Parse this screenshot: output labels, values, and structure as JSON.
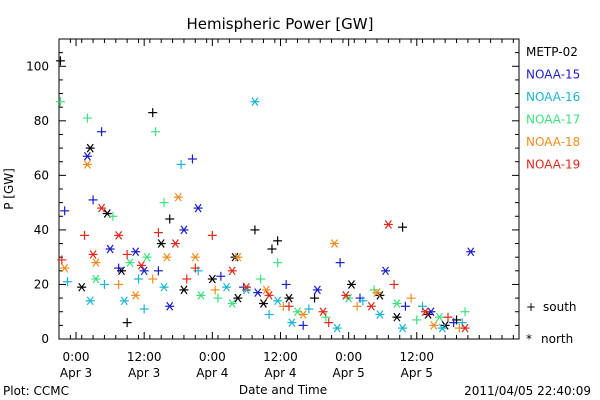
{
  "chart_data": {
    "type": "scatter",
    "title": "Hemispheric Power [GW]",
    "xlabel": "Date and Time",
    "ylabel": "P [GW]",
    "xlim": [
      "2011-04-02T21:00",
      "2011-04-06T06:00"
    ],
    "ylim": [
      0,
      110
    ],
    "y_ticks": [
      0,
      20,
      40,
      60,
      80,
      100
    ],
    "x_ticks": [
      {
        "at": "2011-04-03T00:00",
        "line1": "0:00",
        "line2": "Apr 3"
      },
      {
        "at": "2011-04-03T12:00",
        "line1": "12:00",
        "line2": "Apr 3"
      },
      {
        "at": "2011-04-04T00:00",
        "line1": "0:00",
        "line2": "Apr 4"
      },
      {
        "at": "2011-04-04T12:00",
        "line1": "12:00",
        "line2": "Apr 4"
      },
      {
        "at": "2011-04-05T00:00",
        "line1": "0:00",
        "line2": "Apr 5"
      },
      {
        "at": "2011-04-05T12:00",
        "line1": "12:00",
        "line2": "Apr 5"
      }
    ],
    "grid": false,
    "legend_position": "right",
    "marker_legend": {
      "south_symbol": "+",
      "south_label": "south",
      "north_symbol": "*",
      "north_label": "north"
    },
    "series": [
      {
        "name": "METP-02",
        "color": "#000000",
        "points": [
          [
            "2011-04-02T21:15",
            102,
            "+"
          ],
          [
            "2011-04-03T02:30",
            70,
            "*"
          ],
          [
            "2011-04-03T05:30",
            46,
            "*"
          ],
          [
            "2011-04-03T08:00",
            25,
            "*"
          ],
          [
            "2011-04-03T09:00",
            6,
            "+"
          ],
          [
            "2011-04-03T13:30",
            83,
            "+"
          ],
          [
            "2011-04-03T15:00",
            35,
            "*"
          ],
          [
            "2011-04-03T16:30",
            44,
            "+"
          ],
          [
            "2011-04-04T00:00",
            22,
            "*"
          ],
          [
            "2011-04-04T04:00",
            30,
            "*"
          ],
          [
            "2011-04-04T04:30",
            15,
            "*"
          ],
          [
            "2011-04-04T07:30",
            40,
            "+"
          ],
          [
            "2011-04-04T10:30",
            33,
            "+"
          ],
          [
            "2011-04-04T11:30",
            36,
            "+"
          ],
          [
            "2011-04-04T13:30",
            15,
            "*"
          ],
          [
            "2011-04-04T18:00",
            15,
            "+"
          ],
          [
            "2011-04-05T00:30",
            20,
            "*"
          ],
          [
            "2011-04-05T05:30",
            16,
            "*"
          ],
          [
            "2011-04-05T09:30",
            41,
            "+"
          ],
          [
            "2011-04-05T08:30",
            8,
            "*"
          ],
          [
            "2011-04-05T17:00",
            5,
            "*"
          ],
          [
            "2011-04-05T19:00",
            7,
            "+"
          ],
          [
            "2011-04-05T14:00",
            9,
            "*"
          ],
          [
            "2011-04-03T01:00",
            19,
            "*"
          ],
          [
            "2011-04-03T19:00",
            18,
            "*"
          ],
          [
            "2011-04-04T09:00",
            13,
            "*"
          ]
        ]
      },
      {
        "name": "NOAA-15",
        "color": "#1c1cc8",
        "points": [
          [
            "2011-04-02T22:00",
            47,
            "+"
          ],
          [
            "2011-04-03T02:00",
            67,
            "*"
          ],
          [
            "2011-04-03T03:00",
            51,
            "+"
          ],
          [
            "2011-04-03T04:30",
            76,
            "+"
          ],
          [
            "2011-04-03T06:00",
            33,
            "*"
          ],
          [
            "2011-04-03T07:30",
            26,
            "+"
          ],
          [
            "2011-04-03T10:30",
            32,
            "*"
          ],
          [
            "2011-04-03T12:00",
            25,
            "*"
          ],
          [
            "2011-04-03T14:30",
            25,
            "+"
          ],
          [
            "2011-04-03T19:00",
            40,
            "*"
          ],
          [
            "2011-04-03T20:30",
            66,
            "+"
          ],
          [
            "2011-04-03T21:30",
            48,
            "*"
          ],
          [
            "2011-04-04T01:30",
            23,
            "+"
          ],
          [
            "2011-04-04T05:30",
            19,
            "+"
          ],
          [
            "2011-04-04T08:00",
            17,
            "*"
          ],
          [
            "2011-04-04T13:00",
            20,
            "+"
          ],
          [
            "2011-04-04T18:30",
            18,
            "*"
          ],
          [
            "2011-04-04T22:30",
            28,
            "+"
          ],
          [
            "2011-04-05T02:00",
            15,
            "+"
          ],
          [
            "2011-04-05T06:30",
            25,
            "*"
          ],
          [
            "2011-04-05T10:00",
            12,
            "+"
          ],
          [
            "2011-04-05T14:30",
            10,
            "*"
          ],
          [
            "2011-04-05T18:30",
            6,
            "+"
          ],
          [
            "2011-04-05T21:30",
            32,
            "*"
          ],
          [
            "2011-04-03T16:30",
            12,
            "*"
          ],
          [
            "2011-04-04T16:00",
            5,
            "+"
          ]
        ]
      },
      {
        "name": "NOAA-16",
        "color": "#19b4d4",
        "points": [
          [
            "2011-04-02T22:30",
            21,
            "+"
          ],
          [
            "2011-04-03T02:30",
            14,
            "*"
          ],
          [
            "2011-04-03T05:00",
            20,
            "+"
          ],
          [
            "2011-04-03T08:30",
            14,
            "*"
          ],
          [
            "2011-04-03T11:00",
            22,
            "+"
          ],
          [
            "2011-04-03T15:30",
            19,
            "*"
          ],
          [
            "2011-04-03T18:30",
            64,
            "+"
          ],
          [
            "2011-04-03T21:30",
            25,
            "+"
          ],
          [
            "2011-04-04T02:30",
            19,
            "*"
          ],
          [
            "2011-04-04T06:00",
            18,
            "*"
          ],
          [
            "2011-04-04T07:30",
            87,
            "*"
          ],
          [
            "2011-04-04T10:00",
            9,
            "+"
          ],
          [
            "2011-04-04T14:00",
            6,
            "*"
          ],
          [
            "2011-04-04T17:00",
            11,
            "+"
          ],
          [
            "2011-04-04T22:00",
            4,
            "*"
          ],
          [
            "2011-04-05T02:30",
            14,
            "+"
          ],
          [
            "2011-04-05T05:30",
            9,
            "*"
          ],
          [
            "2011-04-05T09:30",
            4,
            "*"
          ],
          [
            "2011-04-05T13:00",
            12,
            "+"
          ],
          [
            "2011-04-05T16:30",
            4,
            "*"
          ],
          [
            "2011-04-05T20:00",
            6,
            "+"
          ],
          [
            "2011-04-03T12:00",
            11,
            "+"
          ],
          [
            "2011-04-04T11:30",
            14,
            "*"
          ]
        ]
      },
      {
        "name": "NOAA-17",
        "color": "#3fdf7f",
        "points": [
          [
            "2011-04-02T21:15",
            87,
            "+"
          ],
          [
            "2011-04-03T02:00",
            81,
            "+"
          ],
          [
            "2011-04-03T06:30",
            45,
            "+"
          ],
          [
            "2011-04-03T09:30",
            28,
            "*"
          ],
          [
            "2011-04-03T12:30",
            30,
            "*"
          ],
          [
            "2011-04-03T14:00",
            76,
            "+"
          ],
          [
            "2011-04-03T15:30",
            50,
            "+"
          ],
          [
            "2011-04-03T22:00",
            16,
            "*"
          ],
          [
            "2011-04-04T01:00",
            15,
            "+"
          ],
          [
            "2011-04-04T03:30",
            13,
            "*"
          ],
          [
            "2011-04-04T08:30",
            22,
            "+"
          ],
          [
            "2011-04-04T11:30",
            28,
            "+"
          ],
          [
            "2011-04-04T15:00",
            10,
            "*"
          ],
          [
            "2011-04-04T20:00",
            8,
            "+"
          ],
          [
            "2011-04-05T00:00",
            15,
            "*"
          ],
          [
            "2011-04-05T04:30",
            18,
            "+"
          ],
          [
            "2011-04-05T08:30",
            13,
            "*"
          ],
          [
            "2011-04-05T12:00",
            7,
            "+"
          ],
          [
            "2011-04-05T16:00",
            8,
            "*"
          ],
          [
            "2011-04-05T20:30",
            10,
            "+"
          ],
          [
            "2011-04-03T03:30",
            22,
            "*"
          ]
        ]
      },
      {
        "name": "NOAA-18",
        "color": "#f08c1e",
        "points": [
          [
            "2011-04-02T22:00",
            26,
            "*"
          ],
          [
            "2011-04-03T02:00",
            64,
            "*"
          ],
          [
            "2011-04-03T03:30",
            28,
            "*"
          ],
          [
            "2011-04-03T07:30",
            20,
            "+"
          ],
          [
            "2011-04-03T10:30",
            16,
            "*"
          ],
          [
            "2011-04-03T13:30",
            22,
            "+"
          ],
          [
            "2011-04-03T18:00",
            52,
            "*"
          ],
          [
            "2011-04-03T21:00",
            30,
            "*"
          ],
          [
            "2011-04-04T00:30",
            18,
            "+"
          ],
          [
            "2011-04-04T04:30",
            30,
            "*"
          ],
          [
            "2011-04-04T09:30",
            18,
            "*"
          ],
          [
            "2011-04-04T12:30",
            12,
            "+"
          ],
          [
            "2011-04-04T16:00",
            9,
            "*"
          ],
          [
            "2011-04-04T21:30",
            35,
            "*"
          ],
          [
            "2011-04-05T01:30",
            12,
            "+"
          ],
          [
            "2011-04-05T05:00",
            17,
            "*"
          ],
          [
            "2011-04-05T11:00",
            15,
            "+"
          ],
          [
            "2011-04-05T15:00",
            5,
            "*"
          ],
          [
            "2011-04-05T19:30",
            4,
            "+"
          ],
          [
            "2011-04-03T16:00",
            30,
            "*"
          ]
        ]
      },
      {
        "name": "NOAA-19",
        "color": "#e0281a",
        "points": [
          [
            "2011-04-02T21:30",
            29,
            "+"
          ],
          [
            "2011-04-03T01:30",
            38,
            "+"
          ],
          [
            "2011-04-03T03:00",
            31,
            "*"
          ],
          [
            "2011-04-03T04:30",
            48,
            "*"
          ],
          [
            "2011-04-03T07:30",
            38,
            "*"
          ],
          [
            "2011-04-03T09:00",
            31,
            "+"
          ],
          [
            "2011-04-03T11:30",
            27,
            "*"
          ],
          [
            "2011-04-03T14:30",
            39,
            "+"
          ],
          [
            "2011-04-03T17:30",
            35,
            "*"
          ],
          [
            "2011-04-03T21:00",
            26,
            "+"
          ],
          [
            "2011-04-04T00:00",
            38,
            "+"
          ],
          [
            "2011-04-04T03:30",
            25,
            "*"
          ],
          [
            "2011-04-04T06:00",
            19,
            "*"
          ],
          [
            "2011-04-04T10:00",
            16,
            "*"
          ],
          [
            "2011-04-04T13:30",
            12,
            "+"
          ],
          [
            "2011-04-04T19:30",
            10,
            "*"
          ],
          [
            "2011-04-04T23:30",
            16,
            "*"
          ],
          [
            "2011-04-05T04:00",
            12,
            "*"
          ],
          [
            "2011-04-05T07:00",
            42,
            "*"
          ],
          [
            "2011-04-05T08:00",
            20,
            "+"
          ],
          [
            "2011-04-05T13:30",
            10,
            "*"
          ],
          [
            "2011-04-05T17:30",
            8,
            "+"
          ],
          [
            "2011-04-05T20:30",
            4,
            "*"
          ],
          [
            "2011-04-03T19:30",
            22,
            "+"
          ],
          [
            "2011-04-04T20:30",
            6,
            "+"
          ]
        ]
      }
    ]
  },
  "footer": {
    "left": "Plot: CCMC",
    "timestamp": "2011/04/05 22:40:09"
  }
}
